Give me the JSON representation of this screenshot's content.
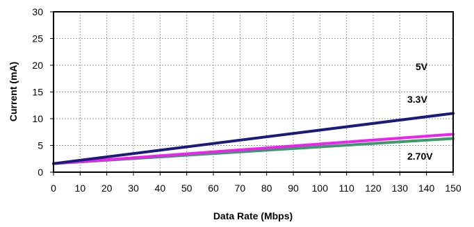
{
  "chart_data": {
    "type": "line",
    "title": "",
    "xlabel": "Data Rate (Mbps)",
    "ylabel": "Current (mA)",
    "xlim": [
      0,
      150
    ],
    "ylim": [
      0,
      30
    ],
    "x_ticks": [
      0,
      10,
      20,
      30,
      40,
      50,
      60,
      70,
      80,
      90,
      100,
      110,
      120,
      130,
      140,
      150
    ],
    "y_ticks": [
      0,
      5,
      10,
      15,
      20,
      25,
      30
    ],
    "grid": true,
    "grid_style": "dashed",
    "legend": "none",
    "series": [
      {
        "name": "5V",
        "color": "#1a1a7a",
        "x": [
          0,
          150
        ],
        "y": [
          1.6,
          11.0
        ]
      },
      {
        "name": "3.3V",
        "color": "#ee22ee",
        "x": [
          0,
          150
        ],
        "y": [
          1.6,
          7.1
        ]
      },
      {
        "name": "2.70V",
        "color": "#3a9a6a",
        "x": [
          0,
          150
        ],
        "y": [
          1.6,
          6.3
        ]
      }
    ]
  }
}
